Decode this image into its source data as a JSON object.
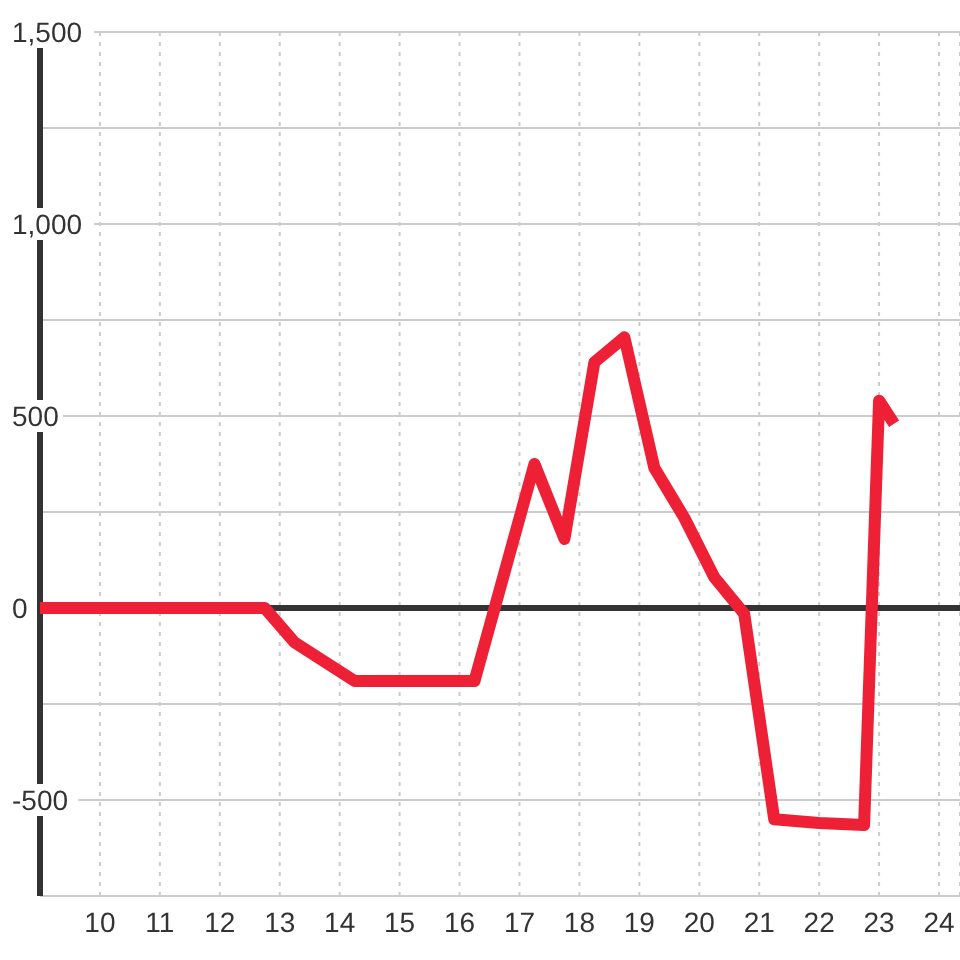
{
  "chart_data": {
    "type": "line",
    "x": [
      9,
      12.75,
      13.25,
      14.25,
      16.25,
      17.25,
      17.75,
      18.25,
      18.75,
      19.25,
      19.75,
      20.25,
      20.75,
      21.25,
      22,
      22.75,
      23,
      23.25
    ],
    "series": [
      {
        "color": "#ee2036",
        "values": [
          0,
          0,
          -90,
          -190,
          -190,
          375,
          180,
          640,
          705,
          365,
          235,
          80,
          -15,
          -550,
          -560,
          -565,
          540,
          480
        ]
      }
    ],
    "xlim": [
      9,
      24.35
    ],
    "xticks": [
      10,
      11,
      12,
      13,
      14,
      15,
      16,
      17,
      18,
      19,
      20,
      21,
      22,
      23,
      24
    ],
    "ylim": [
      -750,
      1500
    ],
    "yticks": [
      {
        "value": -750,
        "label": null
      },
      -500,
      {
        "value": -250,
        "label": null
      },
      0,
      {
        "value": 250,
        "label": null
      },
      500,
      {
        "value": 750,
        "label": null
      },
      {
        "value": 1000,
        "label": "1,000"
      },
      {
        "value": 1250,
        "label": null
      },
      {
        "value": 1500,
        "label": "1,500"
      }
    ],
    "grid": true,
    "marker": "none",
    "line_style": "solid",
    "ref_lines": [
      {
        "axis": "y",
        "value": 0,
        "color": "#333333"
      }
    ]
  }
}
